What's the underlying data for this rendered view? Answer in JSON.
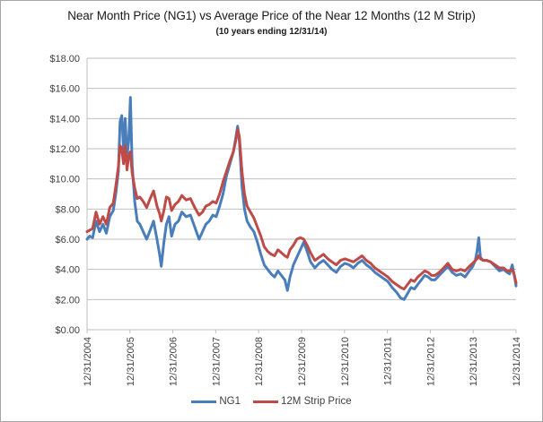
{
  "chart_data": {
    "type": "line",
    "title": "Near Month Price (NG1) vs Average Price of the Near 12 Months (12 M Strip)",
    "subtitle": "(10 years ending 12/31/14)",
    "xlabel": "",
    "ylabel": "",
    "ylim": [
      0,
      18
    ],
    "xlim": [
      2004.99,
      2014.99
    ],
    "y_ticks": [
      "$0.00",
      "$2.00",
      "$4.00",
      "$6.00",
      "$8.00",
      "$10.00",
      "$12.00",
      "$14.00",
      "$16.00",
      "$18.00"
    ],
    "y_tick_values": [
      0,
      2,
      4,
      6,
      8,
      10,
      12,
      14,
      16,
      18
    ],
    "x_ticks": [
      "12/31/2004",
      "12/31/2005",
      "12/31/2006",
      "12/31/2007",
      "12/31/2008",
      "12/31/2009",
      "12/31/2010",
      "12/31/2011",
      "12/31/2012",
      "12/31/2013",
      "12/31/2014"
    ],
    "x_tick_values": [
      2004.99,
      2005.99,
      2006.99,
      2007.99,
      2008.99,
      2009.99,
      2010.99,
      2011.99,
      2012.99,
      2013.99,
      2014.99
    ],
    "grid": "horizontal",
    "legend_position": "bottom",
    "series": [
      {
        "name": "NG1",
        "color": "#4a7ebb",
        "x": [
          2004.99,
          2005.05,
          2005.12,
          2005.2,
          2005.28,
          2005.36,
          2005.44,
          2005.52,
          2005.6,
          2005.66,
          2005.72,
          2005.76,
          2005.8,
          2005.84,
          2005.88,
          2005.92,
          2005.96,
          2006.0,
          2006.04,
          2006.1,
          2006.16,
          2006.22,
          2006.3,
          2006.38,
          2006.46,
          2006.54,
          2006.62,
          2006.68,
          2006.72,
          2006.78,
          2006.84,
          2006.9,
          2006.96,
          2007.04,
          2007.12,
          2007.2,
          2007.3,
          2007.4,
          2007.5,
          2007.6,
          2007.68,
          2007.76,
          2007.84,
          2007.92,
          2008.0,
          2008.08,
          2008.16,
          2008.24,
          2008.32,
          2008.4,
          2008.46,
          2008.5,
          2008.54,
          2008.6,
          2008.66,
          2008.72,
          2008.8,
          2008.88,
          2008.96,
          2009.04,
          2009.12,
          2009.2,
          2009.28,
          2009.36,
          2009.44,
          2009.52,
          2009.6,
          2009.66,
          2009.72,
          2009.8,
          2009.88,
          2009.96,
          2010.04,
          2010.12,
          2010.2,
          2010.3,
          2010.4,
          2010.5,
          2010.6,
          2010.7,
          2010.8,
          2010.9,
          2011.0,
          2011.1,
          2011.2,
          2011.3,
          2011.4,
          2011.5,
          2011.6,
          2011.7,
          2011.8,
          2011.9,
          2012.0,
          2012.1,
          2012.2,
          2012.3,
          2012.38,
          2012.46,
          2012.54,
          2012.62,
          2012.7,
          2012.78,
          2012.86,
          2012.94,
          2013.02,
          2013.1,
          2013.2,
          2013.3,
          2013.4,
          2013.5,
          2013.6,
          2013.7,
          2013.8,
          2013.9,
          2013.98,
          2014.04,
          2014.08,
          2014.12,
          2014.16,
          2014.22,
          2014.3,
          2014.4,
          2014.5,
          2014.6,
          2014.7,
          2014.78,
          2014.84,
          2014.9,
          2014.95,
          2014.99
        ],
        "values": [
          6.0,
          6.2,
          6.1,
          7.2,
          6.5,
          7.0,
          6.4,
          7.5,
          7.9,
          9.0,
          10.5,
          13.8,
          14.2,
          12.0,
          14.0,
          11.5,
          12.5,
          15.4,
          11.0,
          8.5,
          7.2,
          7.0,
          6.5,
          6.0,
          6.6,
          7.2,
          6.0,
          5.0,
          4.2,
          5.8,
          7.0,
          7.5,
          6.2,
          7.0,
          7.2,
          7.8,
          7.5,
          7.6,
          6.8,
          6.0,
          6.5,
          7.0,
          7.2,
          7.6,
          7.5,
          8.2,
          9.0,
          10.2,
          11.0,
          11.8,
          12.8,
          13.5,
          12.5,
          9.5,
          8.0,
          7.2,
          6.8,
          6.5,
          5.8,
          5.0,
          4.3,
          4.0,
          3.7,
          3.5,
          3.9,
          3.6,
          3.3,
          2.6,
          3.5,
          4.3,
          4.8,
          5.3,
          5.8,
          5.2,
          4.5,
          4.1,
          4.4,
          4.6,
          4.3,
          4.0,
          3.8,
          4.2,
          4.4,
          4.3,
          4.1,
          4.4,
          4.6,
          4.3,
          4.1,
          3.8,
          3.6,
          3.4,
          3.2,
          2.8,
          2.5,
          2.1,
          2.0,
          2.4,
          2.8,
          2.7,
          3.0,
          3.3,
          3.6,
          3.5,
          3.3,
          3.3,
          3.6,
          3.9,
          4.2,
          3.8,
          3.6,
          3.7,
          3.5,
          3.9,
          4.2,
          4.6,
          5.2,
          6.1,
          4.8,
          4.6,
          4.6,
          4.5,
          4.2,
          3.9,
          4.0,
          3.8,
          3.7,
          4.3,
          3.6,
          2.9
        ],
        "note": "values approximate, read from gridlines"
      },
      {
        "name": "12M Strip Price",
        "color": "#be4b48",
        "x": [
          2004.99,
          2005.05,
          2005.12,
          2005.2,
          2005.28,
          2005.36,
          2005.44,
          2005.52,
          2005.6,
          2005.66,
          2005.72,
          2005.76,
          2005.8,
          2005.84,
          2005.88,
          2005.92,
          2005.96,
          2006.0,
          2006.04,
          2006.1,
          2006.16,
          2006.22,
          2006.3,
          2006.38,
          2006.46,
          2006.54,
          2006.62,
          2006.68,
          2006.72,
          2006.78,
          2006.84,
          2006.9,
          2006.96,
          2007.04,
          2007.12,
          2007.2,
          2007.3,
          2007.4,
          2007.5,
          2007.6,
          2007.68,
          2007.76,
          2007.84,
          2007.92,
          2008.0,
          2008.08,
          2008.16,
          2008.24,
          2008.32,
          2008.4,
          2008.46,
          2008.5,
          2008.54,
          2008.6,
          2008.66,
          2008.72,
          2008.8,
          2008.88,
          2008.96,
          2009.04,
          2009.12,
          2009.2,
          2009.28,
          2009.36,
          2009.44,
          2009.52,
          2009.6,
          2009.66,
          2009.72,
          2009.8,
          2009.88,
          2009.96,
          2010.04,
          2010.12,
          2010.2,
          2010.3,
          2010.4,
          2010.5,
          2010.6,
          2010.7,
          2010.8,
          2010.9,
          2011.0,
          2011.1,
          2011.2,
          2011.3,
          2011.4,
          2011.5,
          2011.6,
          2011.7,
          2011.8,
          2011.9,
          2012.0,
          2012.1,
          2012.2,
          2012.3,
          2012.38,
          2012.46,
          2012.54,
          2012.62,
          2012.7,
          2012.78,
          2012.86,
          2012.94,
          2013.02,
          2013.1,
          2013.2,
          2013.3,
          2013.4,
          2013.5,
          2013.6,
          2013.7,
          2013.8,
          2013.9,
          2013.98,
          2014.04,
          2014.08,
          2014.12,
          2014.16,
          2014.22,
          2014.3,
          2014.4,
          2014.5,
          2014.6,
          2014.7,
          2014.78,
          2014.84,
          2014.9,
          2014.95,
          2014.99
        ],
        "values": [
          6.5,
          6.6,
          6.7,
          7.8,
          7.0,
          7.5,
          7.0,
          8.1,
          8.4,
          9.5,
          10.8,
          12.2,
          12.0,
          11.0,
          12.2,
          10.6,
          11.5,
          11.8,
          10.4,
          9.4,
          8.7,
          8.8,
          8.5,
          8.1,
          8.7,
          9.2,
          8.2,
          7.7,
          7.2,
          7.9,
          8.8,
          8.7,
          7.9,
          8.3,
          8.5,
          8.9,
          8.6,
          8.7,
          8.1,
          7.6,
          7.8,
          8.2,
          8.3,
          8.5,
          8.4,
          9.0,
          9.8,
          10.5,
          11.2,
          11.8,
          12.6,
          13.3,
          12.8,
          10.5,
          9.0,
          8.2,
          7.8,
          7.4,
          6.8,
          6.2,
          5.5,
          5.2,
          5.0,
          4.9,
          5.3,
          5.1,
          4.9,
          4.8,
          5.3,
          5.6,
          6.0,
          6.1,
          6.0,
          5.6,
          5.1,
          4.6,
          4.8,
          5.0,
          4.7,
          4.5,
          4.3,
          4.6,
          4.7,
          4.6,
          4.5,
          4.7,
          4.9,
          4.6,
          4.4,
          4.1,
          3.9,
          3.7,
          3.5,
          3.2,
          3.0,
          2.8,
          2.7,
          3.0,
          3.3,
          3.2,
          3.5,
          3.7,
          3.9,
          3.8,
          3.6,
          3.6,
          3.8,
          4.1,
          4.4,
          4.0,
          3.9,
          4.0,
          3.9,
          4.2,
          4.4,
          4.6,
          4.7,
          4.9,
          4.7,
          4.6,
          4.6,
          4.5,
          4.3,
          4.1,
          4.1,
          3.9,
          3.9,
          4.0,
          3.6,
          3.1
        ],
        "note": "values approximate, read from gridlines"
      }
    ]
  }
}
